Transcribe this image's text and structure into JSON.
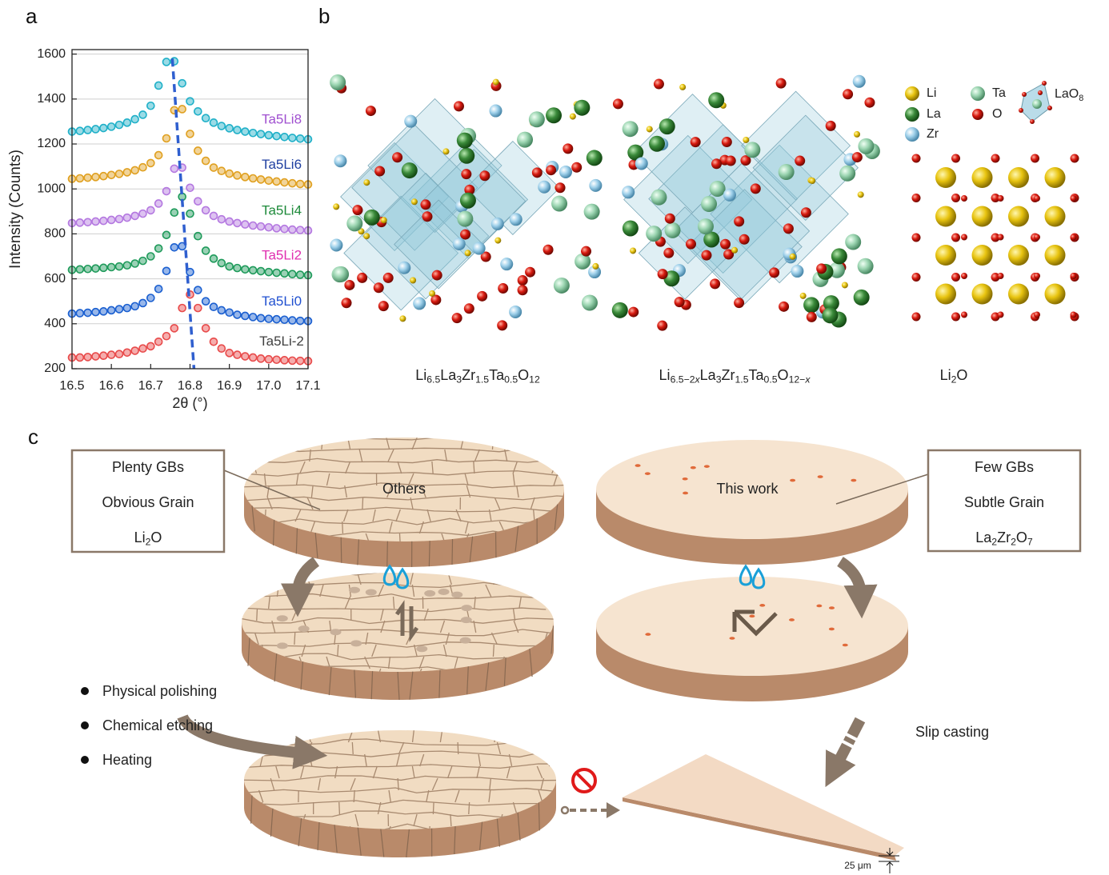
{
  "panel_labels": [
    "a",
    "b",
    "c"
  ],
  "chart_data": {
    "type": "scatter",
    "xlabel": "2θ (°)",
    "ylabel": "Intensity (Counts)",
    "xlim": [
      16.5,
      17.1
    ],
    "ylim": [
      200,
      1620
    ],
    "xticks": [
      16.5,
      16.6,
      16.7,
      16.8,
      16.9,
      {
        "value": 17,
        "label": "17.0"
      },
      17.1
    ],
    "yticks": [
      200,
      400,
      600,
      800,
      1000,
      1200,
      1400,
      1600
    ],
    "grid": true,
    "x": [
      16.5,
      16.52,
      16.54,
      16.56,
      16.58,
      16.6,
      16.62,
      16.64,
      16.66,
      16.68,
      16.7,
      16.72,
      16.74,
      16.76,
      16.78,
      16.8,
      16.82,
      16.84,
      16.86,
      16.88,
      16.9,
      16.92,
      16.94,
      16.96,
      16.98,
      17,
      17.02,
      17.04,
      17.06,
      17.08,
      17.1
    ],
    "series": [
      {
        "name": "Ta5Li8",
        "color": "#1fb0c8",
        "label_color": "#a050d0",
        "values": [
          1255,
          1258,
          1262,
          1266,
          1271,
          1277,
          1285,
          1295,
          1310,
          1330,
          1370,
          1460,
          1565,
          1568,
          1470,
          1390,
          1345,
          1315,
          1295,
          1280,
          1270,
          1262,
          1255,
          1249,
          1244,
          1239,
          1235,
          1231,
          1227,
          1224,
          1221
        ]
      },
      {
        "name": "Ta5Li6",
        "color": "#e0a020",
        "label_color": "#1f3fa0",
        "values": [
          1045,
          1047,
          1050,
          1053,
          1057,
          1062,
          1067,
          1074,
          1083,
          1096,
          1115,
          1150,
          1225,
          1350,
          1355,
          1245,
          1170,
          1125,
          1095,
          1080,
          1068,
          1060,
          1053,
          1047,
          1042,
          1037,
          1033,
          1029,
          1025,
          1022,
          1020
        ]
      },
      {
        "name": "Ta5Li4",
        "color": "#b478e0",
        "label_color": "#1e8a3a",
        "values": [
          848,
          850,
          852,
          855,
          858,
          862,
          866,
          872,
          880,
          890,
          905,
          935,
          990,
          1090,
          1095,
          1005,
          945,
          905,
          880,
          865,
          855,
          848,
          842,
          837,
          833,
          829,
          825,
          822,
          819,
          817,
          815
        ]
      },
      {
        "name": "Ta5Li2",
        "color": "#1e9a5a",
        "label_color": "#e030b0",
        "values": [
          640,
          642,
          644,
          646,
          649,
          652,
          655,
          660,
          668,
          680,
          700,
          735,
          795,
          895,
          965,
          890,
          790,
          725,
          690,
          670,
          655,
          648,
          642,
          638,
          634,
          630,
          627,
          624,
          621,
          618,
          616
        ]
      },
      {
        "name": "Ta5Li0",
        "color": "#1a5fd0",
        "label_color": "#2050d0",
        "values": [
          445,
          447,
          449,
          452,
          455,
          460,
          465,
          470,
          478,
          492,
          515,
          555,
          635,
          740,
          745,
          630,
          550,
          500,
          475,
          460,
          450,
          440,
          435,
          430,
          425,
          422,
          420,
          418,
          415,
          413,
          412
        ]
      },
      {
        "name": "Ta5Li-2",
        "color": "#e84a4a",
        "label_color": "#404040",
        "values": [
          250,
          250,
          252,
          255,
          258,
          262,
          265,
          272,
          280,
          290,
          300,
          320,
          345,
          380,
          470,
          530,
          470,
          380,
          320,
          290,
          270,
          262,
          255,
          250,
          245,
          242,
          240,
          238,
          236,
          235,
          234
        ]
      }
    ],
    "trend": {
      "x": [
        16.755,
        16.81
      ],
      "y": [
        1580,
        200
      ],
      "color": "#2f5fcf"
    }
  },
  "structures": {
    "legend": [
      "Li",
      "La",
      "Zr",
      "Ta",
      "O"
    ],
    "polyhedron": [
      {
        "t": "LaO"
      },
      {
        "sub": "8"
      }
    ],
    "formulas": [
      [
        {
          "t": "Li"
        },
        {
          "sub": "6.5"
        },
        {
          "t": "La"
        },
        {
          "sub": "3"
        },
        {
          "t": "Zr"
        },
        {
          "sub": "1.5"
        },
        {
          "t": "Ta"
        },
        {
          "sub": "0.5"
        },
        {
          "t": "O"
        },
        {
          "sub": "12"
        }
      ],
      [
        {
          "t": "Li"
        },
        {
          "sub": "6.5−2"
        },
        {
          "sub": "x",
          "italic": true
        },
        {
          "t": "La"
        },
        {
          "sub": "3"
        },
        {
          "t": "Zr"
        },
        {
          "sub": "1.5"
        },
        {
          "t": "Ta"
        },
        {
          "sub": "0.5"
        },
        {
          "t": "O"
        },
        {
          "sub": "12−"
        },
        {
          "sub": "x",
          "italic": true
        }
      ],
      [
        {
          "t": "Li"
        },
        {
          "sub": "2"
        },
        {
          "t": "O"
        }
      ]
    ]
  },
  "schematic": {
    "left_box": [
      [
        {
          "t": "Plenty GBs"
        }
      ],
      [
        {
          "t": "Obvious Grain"
        }
      ],
      [
        {
          "t": "Li"
        },
        {
          "sub": "2"
        },
        {
          "t": "O"
        }
      ]
    ],
    "right_box": [
      [
        {
          "t": "Few GBs"
        }
      ],
      [
        {
          "t": "Subtle Grain"
        }
      ],
      [
        {
          "t": "La"
        },
        {
          "sub": "2"
        },
        {
          "t": "Zr"
        },
        {
          "sub": "2"
        },
        {
          "t": "O"
        },
        {
          "sub": "7"
        }
      ]
    ],
    "disc_labels": [
      "Others",
      "This work"
    ],
    "steps": [
      "Physical polishing",
      "Chemical etching",
      "Heating"
    ],
    "process": "Slip casting",
    "thickness": "25 μm"
  }
}
